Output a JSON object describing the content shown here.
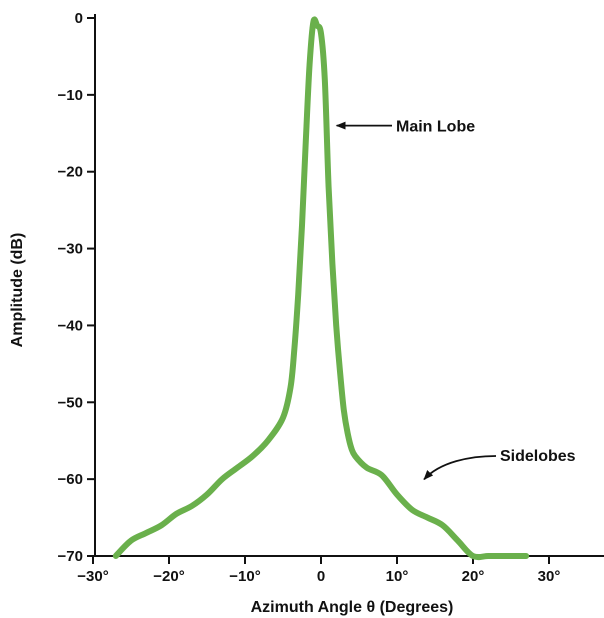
{
  "chart_data": {
    "type": "line",
    "title": "",
    "xlabel": "Azimuth Angle θ (Degrees)",
    "ylabel": "Amplitude (dB)",
    "xlim": [
      -30,
      30
    ],
    "ylim": [
      -70,
      0
    ],
    "x_ticks": [
      {
        "value": -30,
        "label": "−30°"
      },
      {
        "value": -20,
        "label": "−20°"
      },
      {
        "value": -10,
        "label": "−10°"
      },
      {
        "value": 0,
        "label": "0"
      },
      {
        "value": 10,
        "label": "10°"
      },
      {
        "value": 20,
        "label": "20°"
      },
      {
        "value": 30,
        "label": "30°"
      }
    ],
    "y_ticks": [
      {
        "value": 0,
        "label": "0"
      },
      {
        "value": -10,
        "label": "−10"
      },
      {
        "value": -20,
        "label": "−20"
      },
      {
        "value": -30,
        "label": "−30"
      },
      {
        "value": -40,
        "label": "−40"
      },
      {
        "value": -50,
        "label": "−50"
      },
      {
        "value": -60,
        "label": "−60"
      },
      {
        "value": -70,
        "label": "−70"
      }
    ],
    "grid": false,
    "series": [
      {
        "color": "#6ab04c",
        "x": [
          -27,
          -25,
          -23,
          -21,
          -19,
          -17,
          -15,
          -13,
          -11,
          -9,
          -7,
          -5,
          -4,
          -3.5,
          -3,
          -2.5,
          -2,
          -1.5,
          -1,
          -0.5,
          0,
          0.5,
          1,
          1.5,
          2,
          2.5,
          3,
          3.5,
          4,
          4.5,
          6,
          8,
          10,
          12,
          14,
          16,
          18,
          20,
          22,
          24,
          27
        ],
        "y": [
          -70,
          -68,
          -67,
          -66,
          -64.5,
          -63.5,
          -62,
          -60,
          -58.5,
          -57,
          -55,
          -52,
          -48,
          -43,
          -36,
          -27,
          -16,
          -6,
          -0.5,
          -1,
          -2,
          -8,
          -22,
          -32,
          -40,
          -46,
          -51,
          -54,
          -56,
          -57,
          -58.5,
          -59.5,
          -62,
          -64,
          -65,
          -66,
          -68,
          -70,
          -70,
          -70,
          -70
        ]
      }
    ],
    "annotations": [
      {
        "text": "Main Lobe",
        "target_x": 1.8,
        "target_y": -14
      },
      {
        "text": "Sidelobes",
        "target_x": 13.3,
        "target_y": -60.3
      }
    ]
  }
}
